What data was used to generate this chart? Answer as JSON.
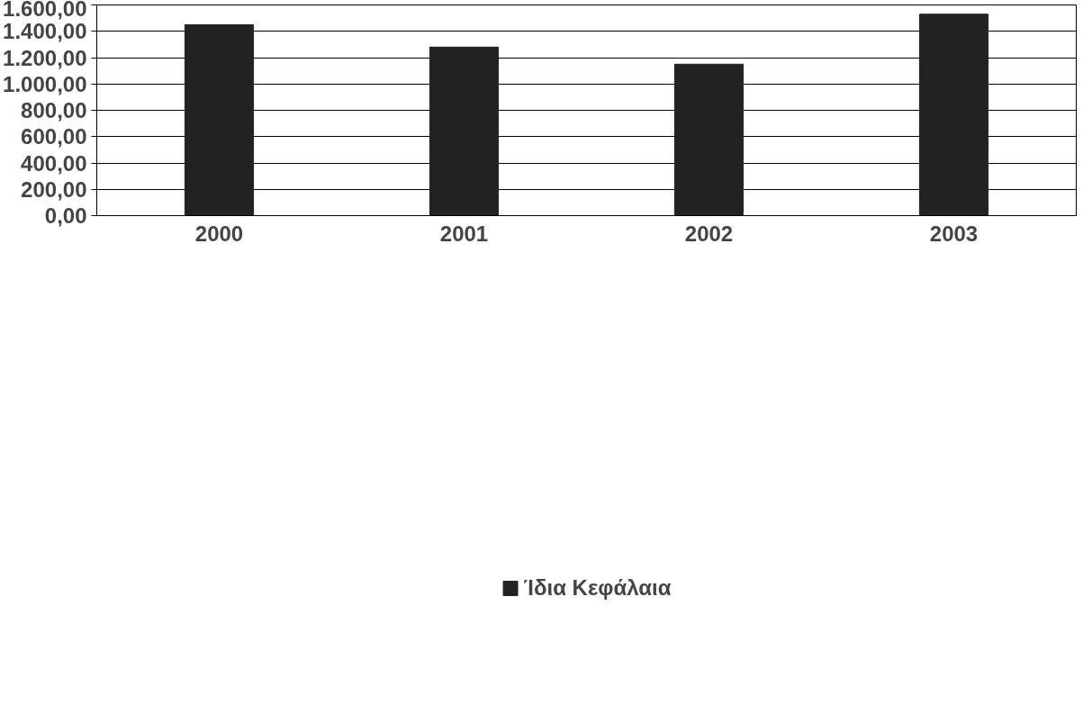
{
  "chart_data": {
    "type": "bar",
    "categories": [
      "2000",
      "2001",
      "2002",
      "2003"
    ],
    "series": [
      {
        "name": "Ίδια Κεφάλαια",
        "color": "#222222",
        "values": [
          1450,
          1280,
          1150,
          1530
        ]
      }
    ],
    "ylim": [
      0,
      1600
    ],
    "yticks": [
      {
        "value": 0,
        "label": "0,00"
      },
      {
        "value": 200,
        "label": "200,00"
      },
      {
        "value": 400,
        "label": "400,00"
      },
      {
        "value": 600,
        "label": "600,00"
      },
      {
        "value": 800,
        "label": "800,00"
      },
      {
        "value": 1000,
        "label": "1.000,00"
      },
      {
        "value": 1200,
        "label": "1.200,00"
      },
      {
        "value": 1400,
        "label": "1.400,00"
      },
      {
        "value": 1600,
        "label": "1.600,00"
      }
    ],
    "grid": "y",
    "legend": "bottom"
  }
}
